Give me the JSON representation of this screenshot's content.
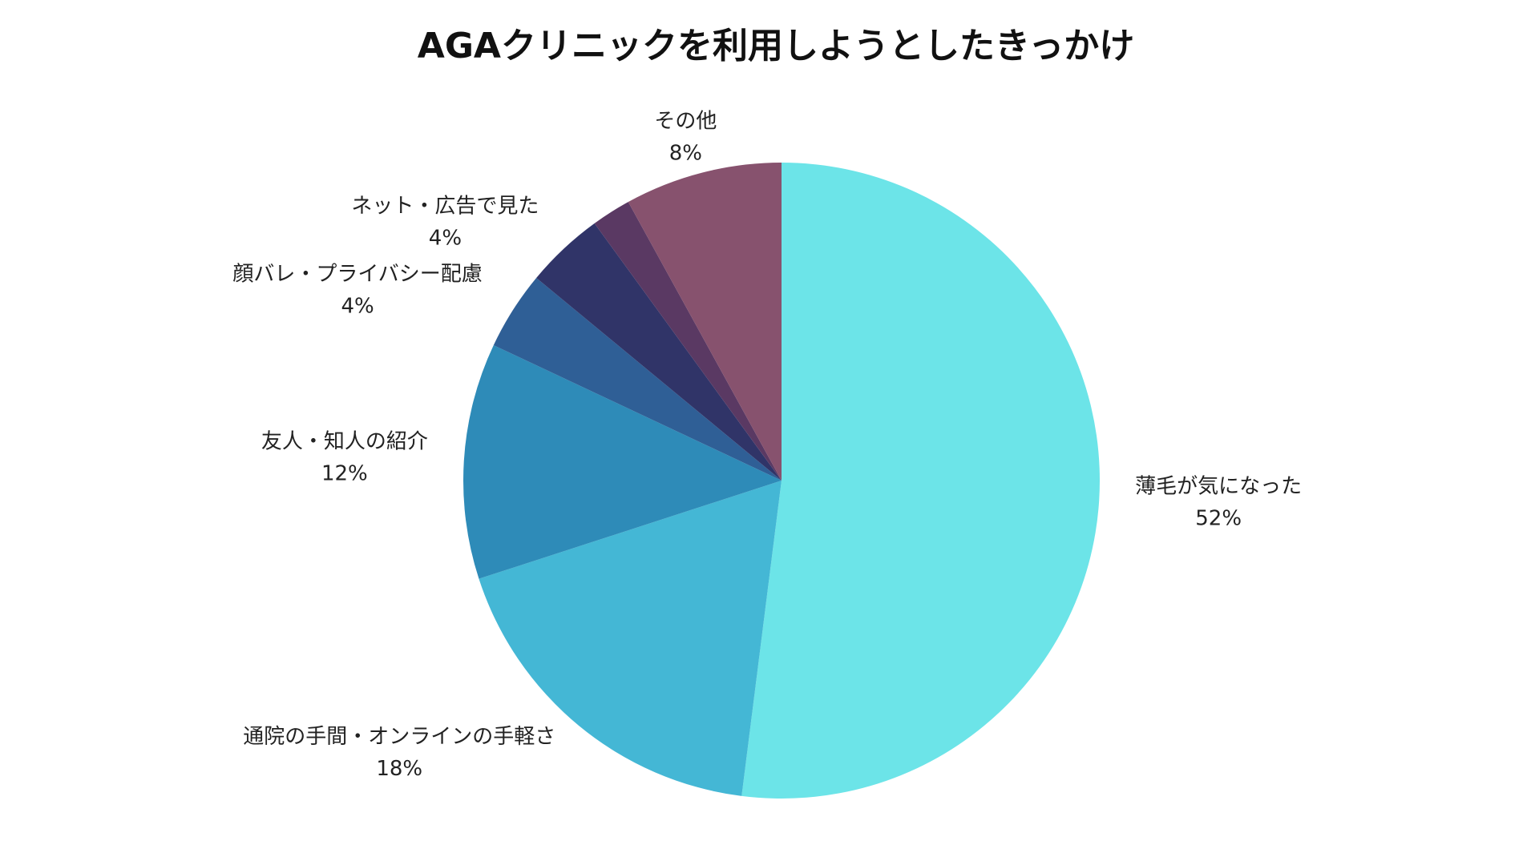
{
  "chart_data": {
    "type": "pie",
    "title": "AGAクリニックを利用しようとしたきっかけ",
    "categories": [
      "薄毛が気になった",
      "通院の手間・オンラインの手軽さ",
      "友人・知人の紹介",
      "顔バレ・プライバシー配慮",
      "ネット・広告で見た",
      null,
      "その他"
    ],
    "values": [
      52,
      18,
      12,
      4,
      4,
      2,
      8
    ],
    "value_labels": [
      "52%",
      "18%",
      "12%",
      "4%",
      "4%",
      null,
      "8%"
    ],
    "colors": [
      "#6ce4e8",
      "#44b7d5",
      "#2e8bb8",
      "#2f5f96",
      "#303468",
      "#5a3963",
      "#87526e"
    ]
  }
}
